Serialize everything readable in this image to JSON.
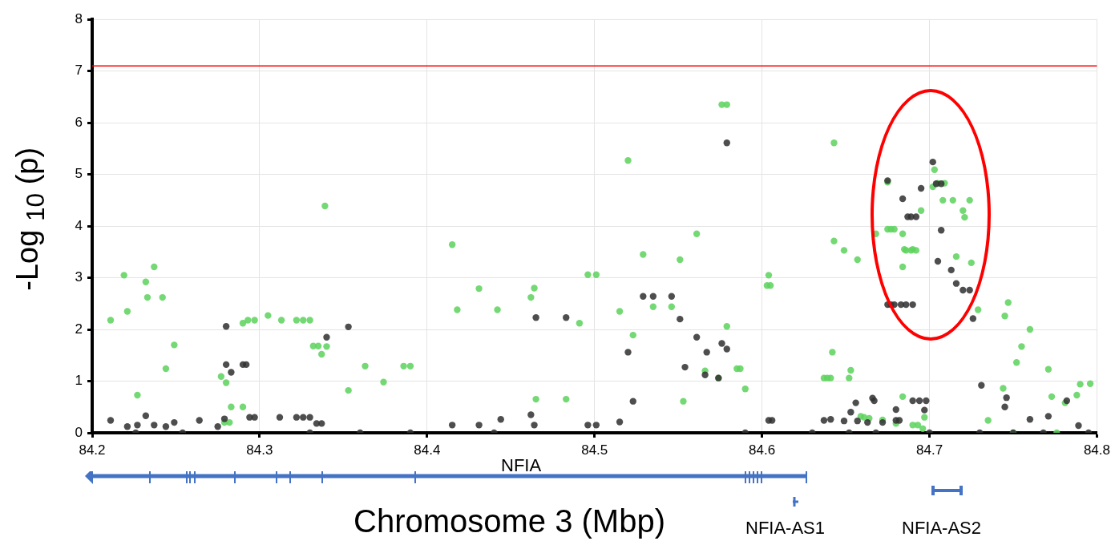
{
  "chart_data": {
    "type": "scatter",
    "xlabel": "Chromosome 3 (Mbp)",
    "ylabel": "-Log $_{10}$ (p)",
    "xlim": [
      84.2,
      84.8
    ],
    "xticks": [
      84.2,
      84.3,
      84.4,
      84.5,
      84.6,
      84.7,
      84.8
    ],
    "ylim": [
      0,
      8
    ],
    "yticks": [
      0,
      1,
      2,
      3,
      4,
      5,
      6,
      7,
      8
    ],
    "grid": true,
    "marker": "circle",
    "ref_lines": [
      {
        "axis": "y",
        "value": 7.1,
        "color": "#ff0000"
      }
    ],
    "annotations": [
      "NFIA",
      "NFIA-AS1",
      "NFIA-AS2"
    ],
    "series": [
      {
        "color": "#333333",
        "x": [
          84.211,
          84.221,
          84.227,
          84.232,
          84.237,
          84.244,
          84.249,
          84.264,
          84.275,
          84.279,
          84.28,
          84.28,
          84.283,
          84.29,
          84.292,
          84.294,
          84.297,
          84.312,
          84.322,
          84.326,
          84.33,
          84.334,
          84.337,
          84.34,
          84.353,
          84.226,
          84.254,
          84.33,
          84.36,
          84.39,
          84.415,
          84.431,
          84.444,
          84.462,
          84.464,
          84.465,
          84.483,
          84.496,
          84.501,
          84.515,
          84.52,
          84.523,
          84.529,
          84.535,
          84.546,
          84.551,
          84.554,
          84.561,
          84.567,
          84.566,
          84.574,
          84.576,
          84.579,
          84.579,
          84.604,
          84.606,
          84.44,
          84.59,
          84.63,
          84.637,
          84.641,
          84.649,
          84.657,
          84.656,
          84.666,
          84.667,
          84.653,
          84.663,
          84.672,
          84.68,
          84.675,
          84.675,
          84.677,
          84.679,
          84.683,
          84.686,
          84.69,
          84.684,
          84.687,
          84.689,
          84.692,
          84.695,
          84.702,
          84.704,
          84.707,
          84.707,
          84.705,
          84.713,
          84.716,
          84.72,
          84.724,
          84.726,
          84.731,
          84.69,
          84.694,
          84.698,
          84.697,
          84.68,
          84.682,
          84.746,
          84.745,
          84.76,
          84.771,
          84.782,
          84.789,
          84.652,
          84.668,
          84.7,
          84.73,
          84.75,
          84.768,
          84.795
        ],
        "values": [
          0.24,
          0.12,
          0.15,
          0.33,
          0.15,
          0.12,
          0.2,
          0.24,
          0.12,
          0.27,
          2.06,
          1.32,
          1.17,
          1.32,
          1.32,
          0.3,
          0.3,
          0.3,
          0.3,
          0.3,
          0.3,
          0.18,
          0.18,
          1.85,
          2.05,
          0,
          0,
          0,
          0,
          0,
          0.15,
          0.15,
          0.26,
          0.35,
          0.15,
          2.23,
          2.23,
          0.15,
          0.15,
          0.21,
          1.56,
          0.61,
          2.64,
          2.64,
          2.64,
          2.2,
          1.27,
          1.85,
          1.56,
          1.12,
          1.06,
          1.73,
          5.61,
          1.62,
          0.24,
          0.24,
          0,
          0,
          0,
          0.24,
          0.26,
          0.23,
          0.23,
          0.58,
          0.67,
          0.62,
          0.4,
          0.2,
          0.2,
          0.45,
          4.88,
          2.48,
          2.48,
          2.48,
          2.48,
          2.48,
          2.48,
          4.53,
          4.18,
          4.18,
          4.18,
          4.73,
          5.24,
          4.82,
          4.82,
          3.92,
          3.32,
          3.15,
          2.89,
          2.76,
          2.76,
          2.21,
          0.92,
          0.62,
          0.62,
          0.62,
          0.44,
          0.24,
          0.24,
          0.68,
          0.5,
          0.26,
          0.32,
          0.62,
          0.14,
          0,
          0,
          0,
          0,
          0,
          0,
          0
        ]
      },
      {
        "color": "#5fd35f",
        "x": [
          84.211,
          84.219,
          84.221,
          84.227,
          84.232,
          84.233,
          84.237,
          84.242,
          84.244,
          84.249,
          84.277,
          84.28,
          84.279,
          84.282,
          84.283,
          84.29,
          84.29,
          84.293,
          84.297,
          84.305,
          84.313,
          84.322,
          84.326,
          84.33,
          84.332,
          84.335,
          84.337,
          84.34,
          84.339,
          84.353,
          84.363,
          84.374,
          84.386,
          84.39,
          84.415,
          84.418,
          84.431,
          84.442,
          84.462,
          84.464,
          84.465,
          84.483,
          84.491,
          84.496,
          84.501,
          84.515,
          84.52,
          84.523,
          84.529,
          84.535,
          84.546,
          84.551,
          84.553,
          84.561,
          84.566,
          84.574,
          84.576,
          84.579,
          84.579,
          84.585,
          84.587,
          84.59,
          84.604,
          84.605,
          84.603,
          84.643,
          84.643,
          84.642,
          84.649,
          84.657,
          84.652,
          84.653,
          84.637,
          84.639,
          84.641,
          84.668,
          84.675,
          84.675,
          84.677,
          84.679,
          84.684,
          84.684,
          84.685,
          84.686,
          84.689,
          84.69,
          84.692,
          84.695,
          84.702,
          84.703,
          84.705,
          84.708,
          84.709,
          84.714,
          84.72,
          84.721,
          84.716,
          84.725,
          84.724,
          84.729,
          84.735,
          84.744,
          84.745,
          84.747,
          84.752,
          84.755,
          84.76,
          84.771,
          84.773,
          84.781,
          84.788,
          84.79,
          84.796,
          84.659,
          84.661,
          84.664,
          84.672,
          84.68,
          84.69,
          84.693,
          84.696,
          84.697,
          84.684,
          84.75,
          84.776
        ],
        "values": [
          2.18,
          3.05,
          2.35,
          0.73,
          2.92,
          2.62,
          3.21,
          2.62,
          1.24,
          1.7,
          1.09,
          0.97,
          0.2,
          0.2,
          0.5,
          2.12,
          0.5,
          2.18,
          2.18,
          2.27,
          2.18,
          2.18,
          2.18,
          2.18,
          1.68,
          1.68,
          1.52,
          1.67,
          4.39,
          0.82,
          1.29,
          0.98,
          1.29,
          1.29,
          3.64,
          2.38,
          2.79,
          2.38,
          2.62,
          2.8,
          0.65,
          0.65,
          2.12,
          3.06,
          3.06,
          2.35,
          5.27,
          1.89,
          3.45,
          2.44,
          2.44,
          3.35,
          0.61,
          3.85,
          1.2,
          1.06,
          6.35,
          6.35,
          2.06,
          1.24,
          1.24,
          0.85,
          3.05,
          2.85,
          2.85,
          5.61,
          3.71,
          1.56,
          3.53,
          3.35,
          1.06,
          1.21,
          1.06,
          1.06,
          1.06,
          3.85,
          4.85,
          3.94,
          3.94,
          3.94,
          3.85,
          3.21,
          3.55,
          3.53,
          3.53,
          3.55,
          3.53,
          4.3,
          4.76,
          5.09,
          4.83,
          4.5,
          4.83,
          4.5,
          4.3,
          4.17,
          3.41,
          3.29,
          4.5,
          2.38,
          0.24,
          0.86,
          2.26,
          2.52,
          1.36,
          1.67,
          2.0,
          1.23,
          0.7,
          0.58,
          0.73,
          0.94,
          0.95,
          0.32,
          0.3,
          0.28,
          0.25,
          0.18,
          0.15,
          0.15,
          0.08,
          0.3,
          0.7,
          0,
          0
        ]
      }
    ]
  }
}
